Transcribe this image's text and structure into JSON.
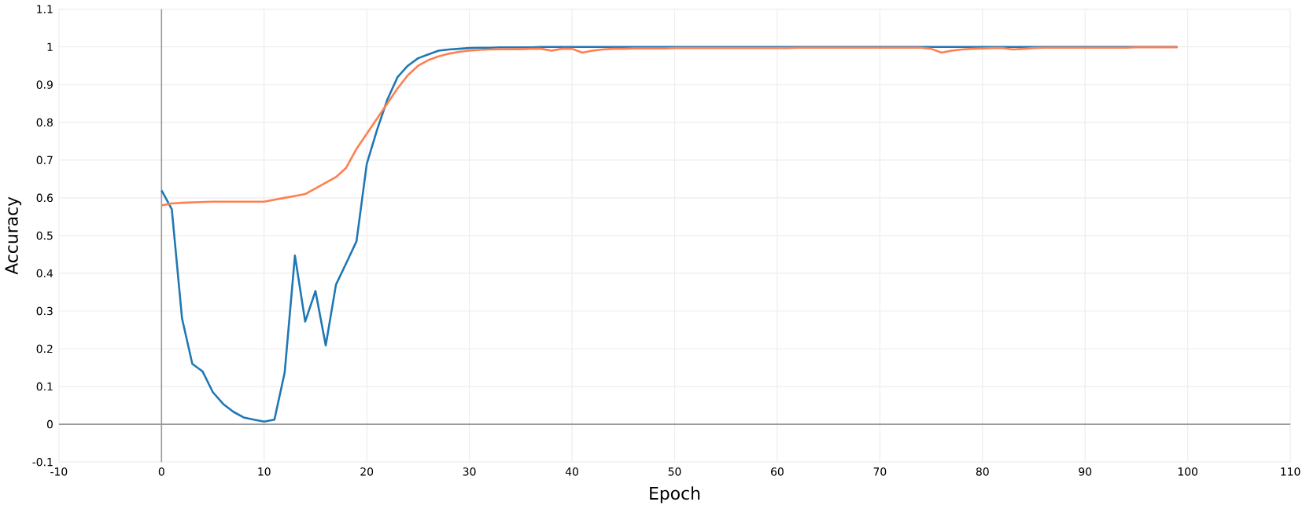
{
  "chart_data": {
    "type": "line",
    "xlabel": "Epoch",
    "ylabel": "Accuracy",
    "xlim": [
      -10,
      110
    ],
    "ylim": [
      -0.1,
      1.1
    ],
    "xticks": [
      -10,
      0,
      10,
      20,
      30,
      40,
      50,
      60,
      70,
      80,
      90,
      100,
      110
    ],
    "yticks": [
      -0.1,
      0,
      0.1,
      0.2,
      0.3,
      0.4,
      0.5,
      0.6,
      0.7,
      0.8,
      0.9,
      1,
      1.1
    ],
    "grid": true,
    "marker": "none",
    "line_style": "solid",
    "x": [
      0,
      1,
      2,
      3,
      4,
      5,
      6,
      7,
      8,
      9,
      10,
      11,
      12,
      13,
      14,
      15,
      16,
      17,
      18,
      19,
      20,
      21,
      22,
      23,
      24,
      25,
      26,
      27,
      28,
      29,
      30,
      31,
      32,
      33,
      34,
      35,
      36,
      37,
      38,
      39,
      40,
      41,
      42,
      43,
      44,
      45,
      46,
      47,
      48,
      49,
      50,
      51,
      52,
      53,
      54,
      55,
      56,
      57,
      58,
      59,
      60,
      61,
      62,
      63,
      64,
      65,
      66,
      67,
      68,
      69,
      70,
      71,
      72,
      73,
      74,
      75,
      76,
      77,
      78,
      79,
      80,
      81,
      82,
      83,
      84,
      85,
      86,
      87,
      88,
      89,
      90,
      91,
      92,
      93,
      94,
      95,
      96,
      97,
      98,
      99
    ],
    "series": [
      {
        "color": "#1f77b4",
        "values": [
          0.62,
          0.57,
          0.28,
          0.16,
          0.14,
          0.085,
          0.054,
          0.033,
          0.018,
          0.012,
          0.007,
          0.012,
          0.137,
          0.447,
          0.272,
          0.353,
          0.209,
          0.37,
          0.427,
          0.485,
          0.69,
          0.78,
          0.86,
          0.92,
          0.95,
          0.97,
          0.98,
          0.99,
          0.993,
          0.995,
          0.997,
          0.998,
          0.998,
          0.999,
          0.999,
          0.999,
          0.999,
          1,
          1,
          1,
          1,
          1,
          1,
          1,
          1,
          1,
          1,
          1,
          1,
          1,
          1,
          1,
          1,
          1,
          1,
          1,
          1,
          1,
          1,
          1,
          1,
          1,
          1,
          1,
          1,
          1,
          1,
          1,
          1,
          1,
          1,
          1,
          1,
          1,
          1,
          1,
          1,
          1,
          1,
          1,
          1,
          1,
          1,
          1,
          1,
          1,
          1,
          1,
          1,
          1,
          1,
          1,
          1,
          1,
          1,
          1,
          1,
          1,
          1,
          1
        ]
      },
      {
        "color": "#ff7f50",
        "values": [
          0.58,
          0.585,
          0.587,
          0.588,
          0.589,
          0.59,
          0.59,
          0.59,
          0.59,
          0.59,
          0.59,
          0.595,
          0.6,
          0.605,
          0.61,
          0.625,
          0.64,
          0.655,
          0.68,
          0.73,
          0.77,
          0.81,
          0.85,
          0.89,
          0.925,
          0.95,
          0.965,
          0.975,
          0.982,
          0.987,
          0.99,
          0.992,
          0.993,
          0.994,
          0.994,
          0.994,
          0.995,
          0.995,
          0.99,
          0.995,
          0.995,
          0.985,
          0.99,
          0.993,
          0.995,
          0.995,
          0.996,
          0.996,
          0.996,
          0.996,
          0.997,
          0.997,
          0.997,
          0.997,
          0.997,
          0.997,
          0.997,
          0.997,
          0.997,
          0.997,
          0.997,
          0.997,
          0.998,
          0.998,
          0.998,
          0.998,
          0.998,
          0.998,
          0.998,
          0.998,
          0.998,
          0.998,
          0.998,
          0.998,
          0.998,
          0.995,
          0.985,
          0.99,
          0.993,
          0.995,
          0.996,
          0.997,
          0.997,
          0.993,
          0.995,
          0.997,
          0.998,
          0.998,
          0.998,
          0.998,
          0.998,
          0.998,
          0.998,
          0.998,
          0.998,
          0.999,
          0.999,
          0.999,
          0.999,
          0.999
        ]
      }
    ]
  }
}
